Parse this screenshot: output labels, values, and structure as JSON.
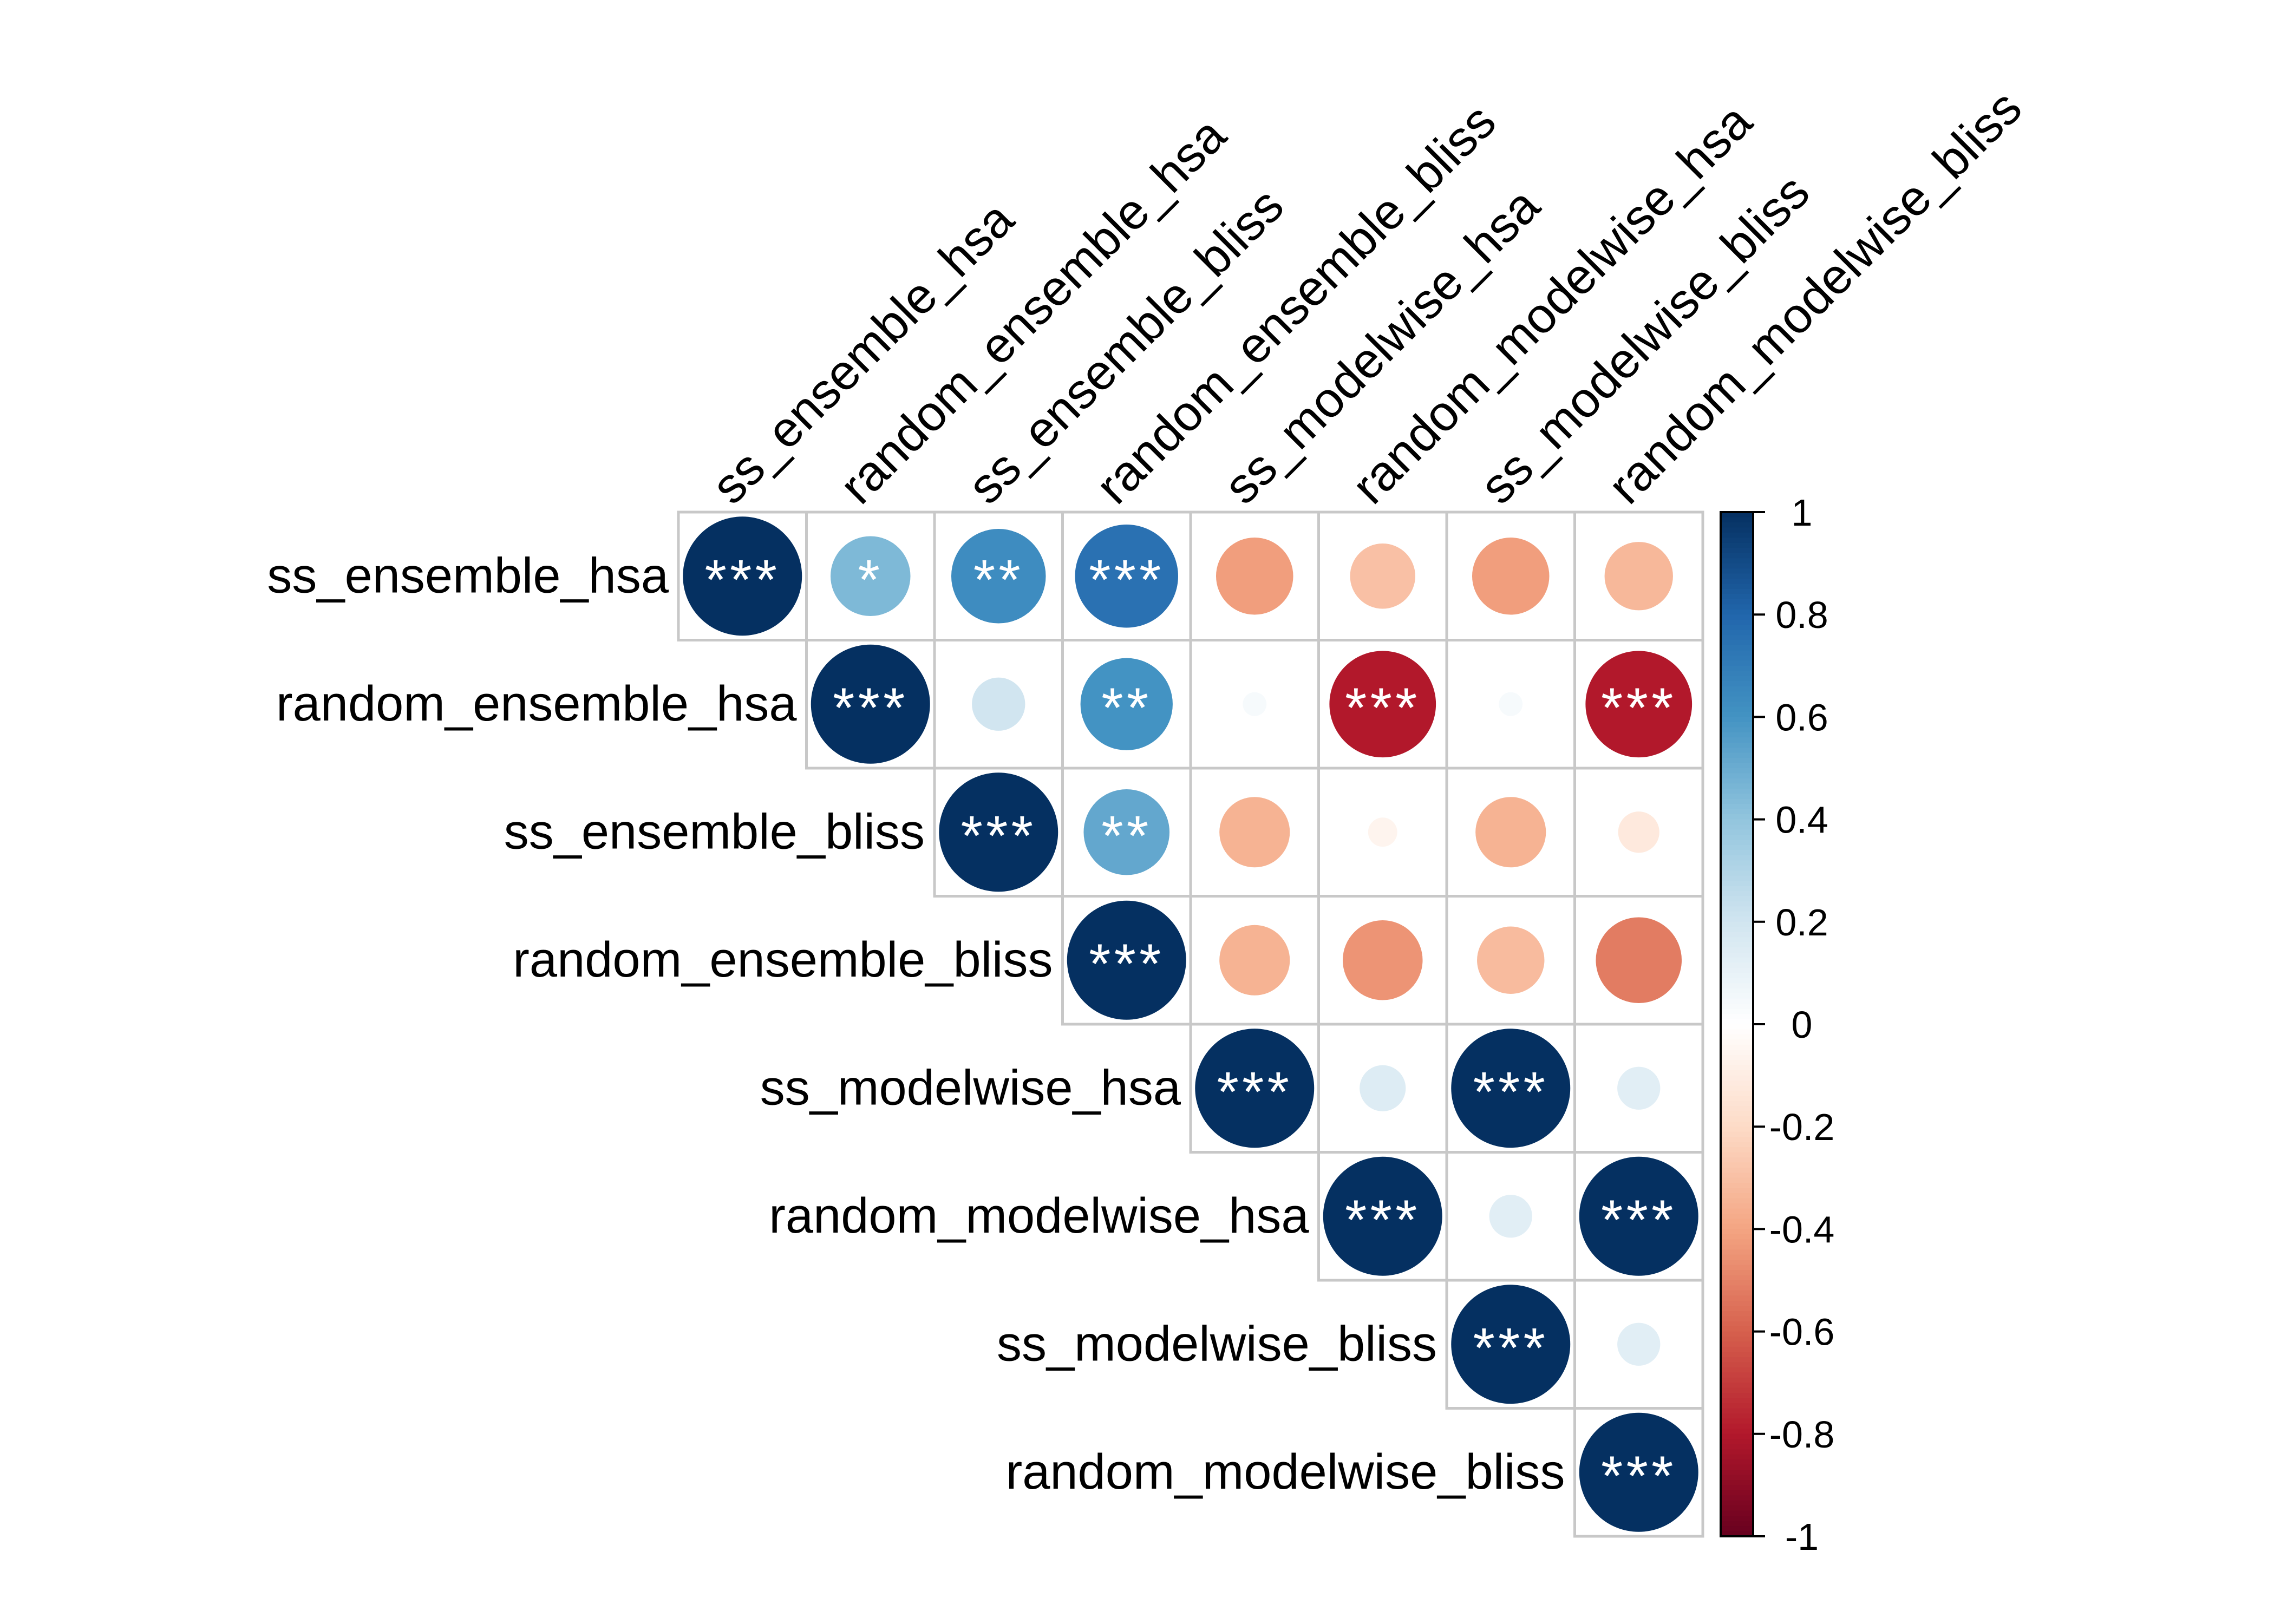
{
  "chart_data": {
    "type": "heatmap",
    "subtype": "correlation-matrix-upper-circles",
    "variables": [
      "ss_ensemble_hsa",
      "random_ensemble_hsa",
      "ss_ensemble_bliss",
      "random_ensemble_bliss",
      "ss_modelwise_hsa",
      "random_modelwise_hsa",
      "ss_modelwise_bliss",
      "random_modelwise_bliss"
    ],
    "matrix": [
      [
        1.0,
        0.45,
        0.63,
        0.75,
        -0.42,
        -0.3,
        -0.42,
        -0.33
      ],
      [
        null,
        1.0,
        0.2,
        0.6,
        0.04,
        -0.8,
        0.04,
        -0.8
      ],
      [
        null,
        null,
        1.0,
        0.52,
        -0.35,
        -0.06,
        -0.35,
        -0.12
      ],
      [
        null,
        null,
        null,
        1.0,
        -0.35,
        -0.45,
        -0.32,
        -0.52
      ],
      [
        null,
        null,
        null,
        null,
        1.0,
        0.15,
        1.0,
        0.13
      ],
      [
        null,
        null,
        null,
        null,
        null,
        1.0,
        0.13,
        1.0
      ],
      [
        null,
        null,
        null,
        null,
        null,
        null,
        1.0,
        0.13
      ],
      [
        null,
        null,
        null,
        null,
        null,
        null,
        null,
        1.0
      ]
    ],
    "significance": [
      [
        "***",
        "*",
        "**",
        "***",
        "",
        "",
        "",
        ""
      ],
      [
        "",
        "***",
        "",
        "**",
        "",
        "***",
        "",
        "***"
      ],
      [
        "",
        "",
        "***",
        "**",
        "",
        "",
        "",
        ""
      ],
      [
        "",
        "",
        "",
        "***",
        "",
        "",
        "",
        ""
      ],
      [
        "",
        "",
        "",
        "",
        "***",
        "",
        "***",
        ""
      ],
      [
        "",
        "",
        "",
        "",
        "",
        "***",
        "",
        "***"
      ],
      [
        "",
        "",
        "",
        "",
        "",
        "",
        "***",
        ""
      ],
      [
        "",
        "",
        "",
        "",
        "",
        "",
        "",
        "***"
      ]
    ],
    "colorbar": {
      "min": -1,
      "max": 1,
      "ticks": [
        "1",
        "0.8",
        "0.6",
        "0.4",
        "0.2",
        "0",
        "-0.2",
        "-0.4",
        "-0.6",
        "-0.8",
        "-1"
      ],
      "tick_values": [
        1,
        0.8,
        0.6,
        0.4,
        0.2,
        0,
        -0.2,
        -0.4,
        -0.6,
        -0.8,
        -1
      ],
      "colors_low_to_high": [
        "#67001F",
        "#B2182B",
        "#D6604D",
        "#F4A582",
        "#FDDBC7",
        "#FFFFFF",
        "#D1E5F0",
        "#92C5DE",
        "#4393C3",
        "#2166AC",
        "#053061"
      ]
    },
    "grid_color": "#C8C8C8",
    "star_color": "#FFFFFF",
    "legend_position": "right"
  }
}
